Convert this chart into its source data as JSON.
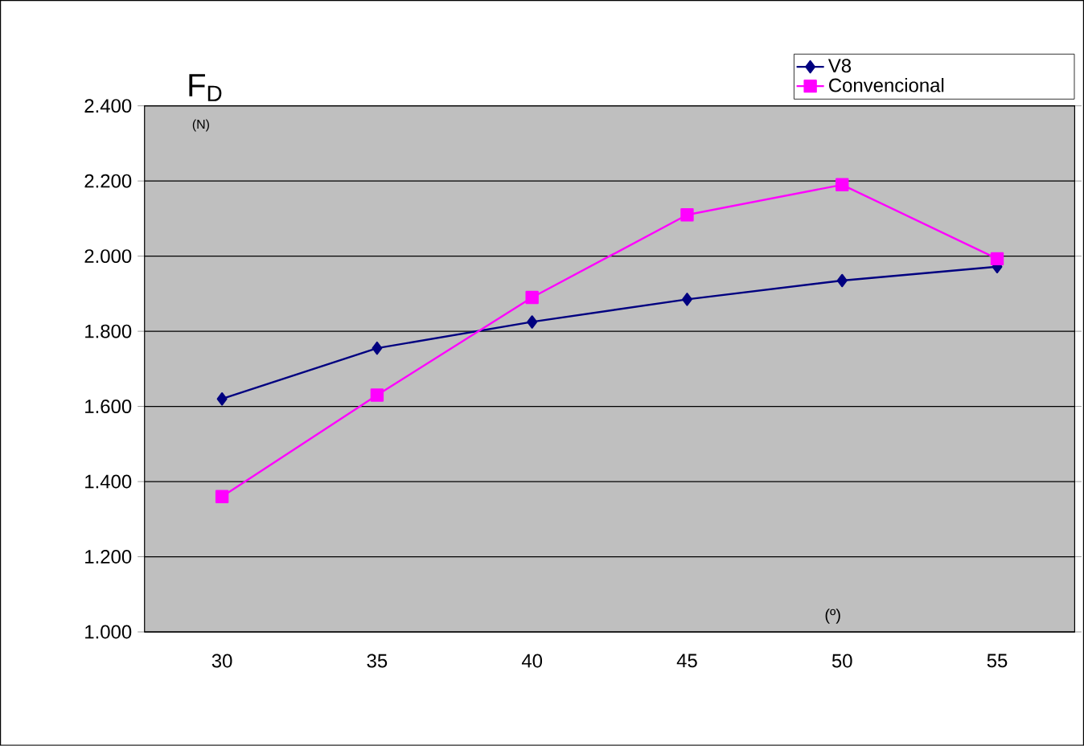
{
  "chart_data": {
    "type": "line",
    "ylabel": "F$_{D}$",
    "xlabel": "(º)",
    "annotations": [
      "(N)"
    ],
    "categories": [
      "30",
      "35",
      "40",
      "45",
      "50",
      "55"
    ],
    "series": [
      {
        "name": "V8",
        "color": "#000080",
        "marker": "diamond",
        "values": [
          1620,
          1755,
          1825,
          1885,
          1935,
          1972
        ]
      },
      {
        "name": "Convencional",
        "color": "#ff00ff",
        "marker": "square",
        "values": [
          1360,
          1630,
          1890,
          2110,
          2190,
          1993
        ]
      }
    ],
    "ylim": [
      1000,
      2400
    ],
    "yticks": [
      {
        "value": 1000,
        "label": "1.000"
      },
      {
        "value": 1200,
        "label": "1.200"
      },
      {
        "value": 1400,
        "label": "1.400"
      },
      {
        "value": 1600,
        "label": "1.600"
      },
      {
        "value": 1800,
        "label": "1.800"
      },
      {
        "value": 2000,
        "label": "2.000"
      },
      {
        "value": 2200,
        "label": "2.200"
      },
      {
        "value": 2400,
        "label": "2.400"
      }
    ],
    "grid": "y",
    "legend": "top right",
    "line_style": "solid"
  }
}
